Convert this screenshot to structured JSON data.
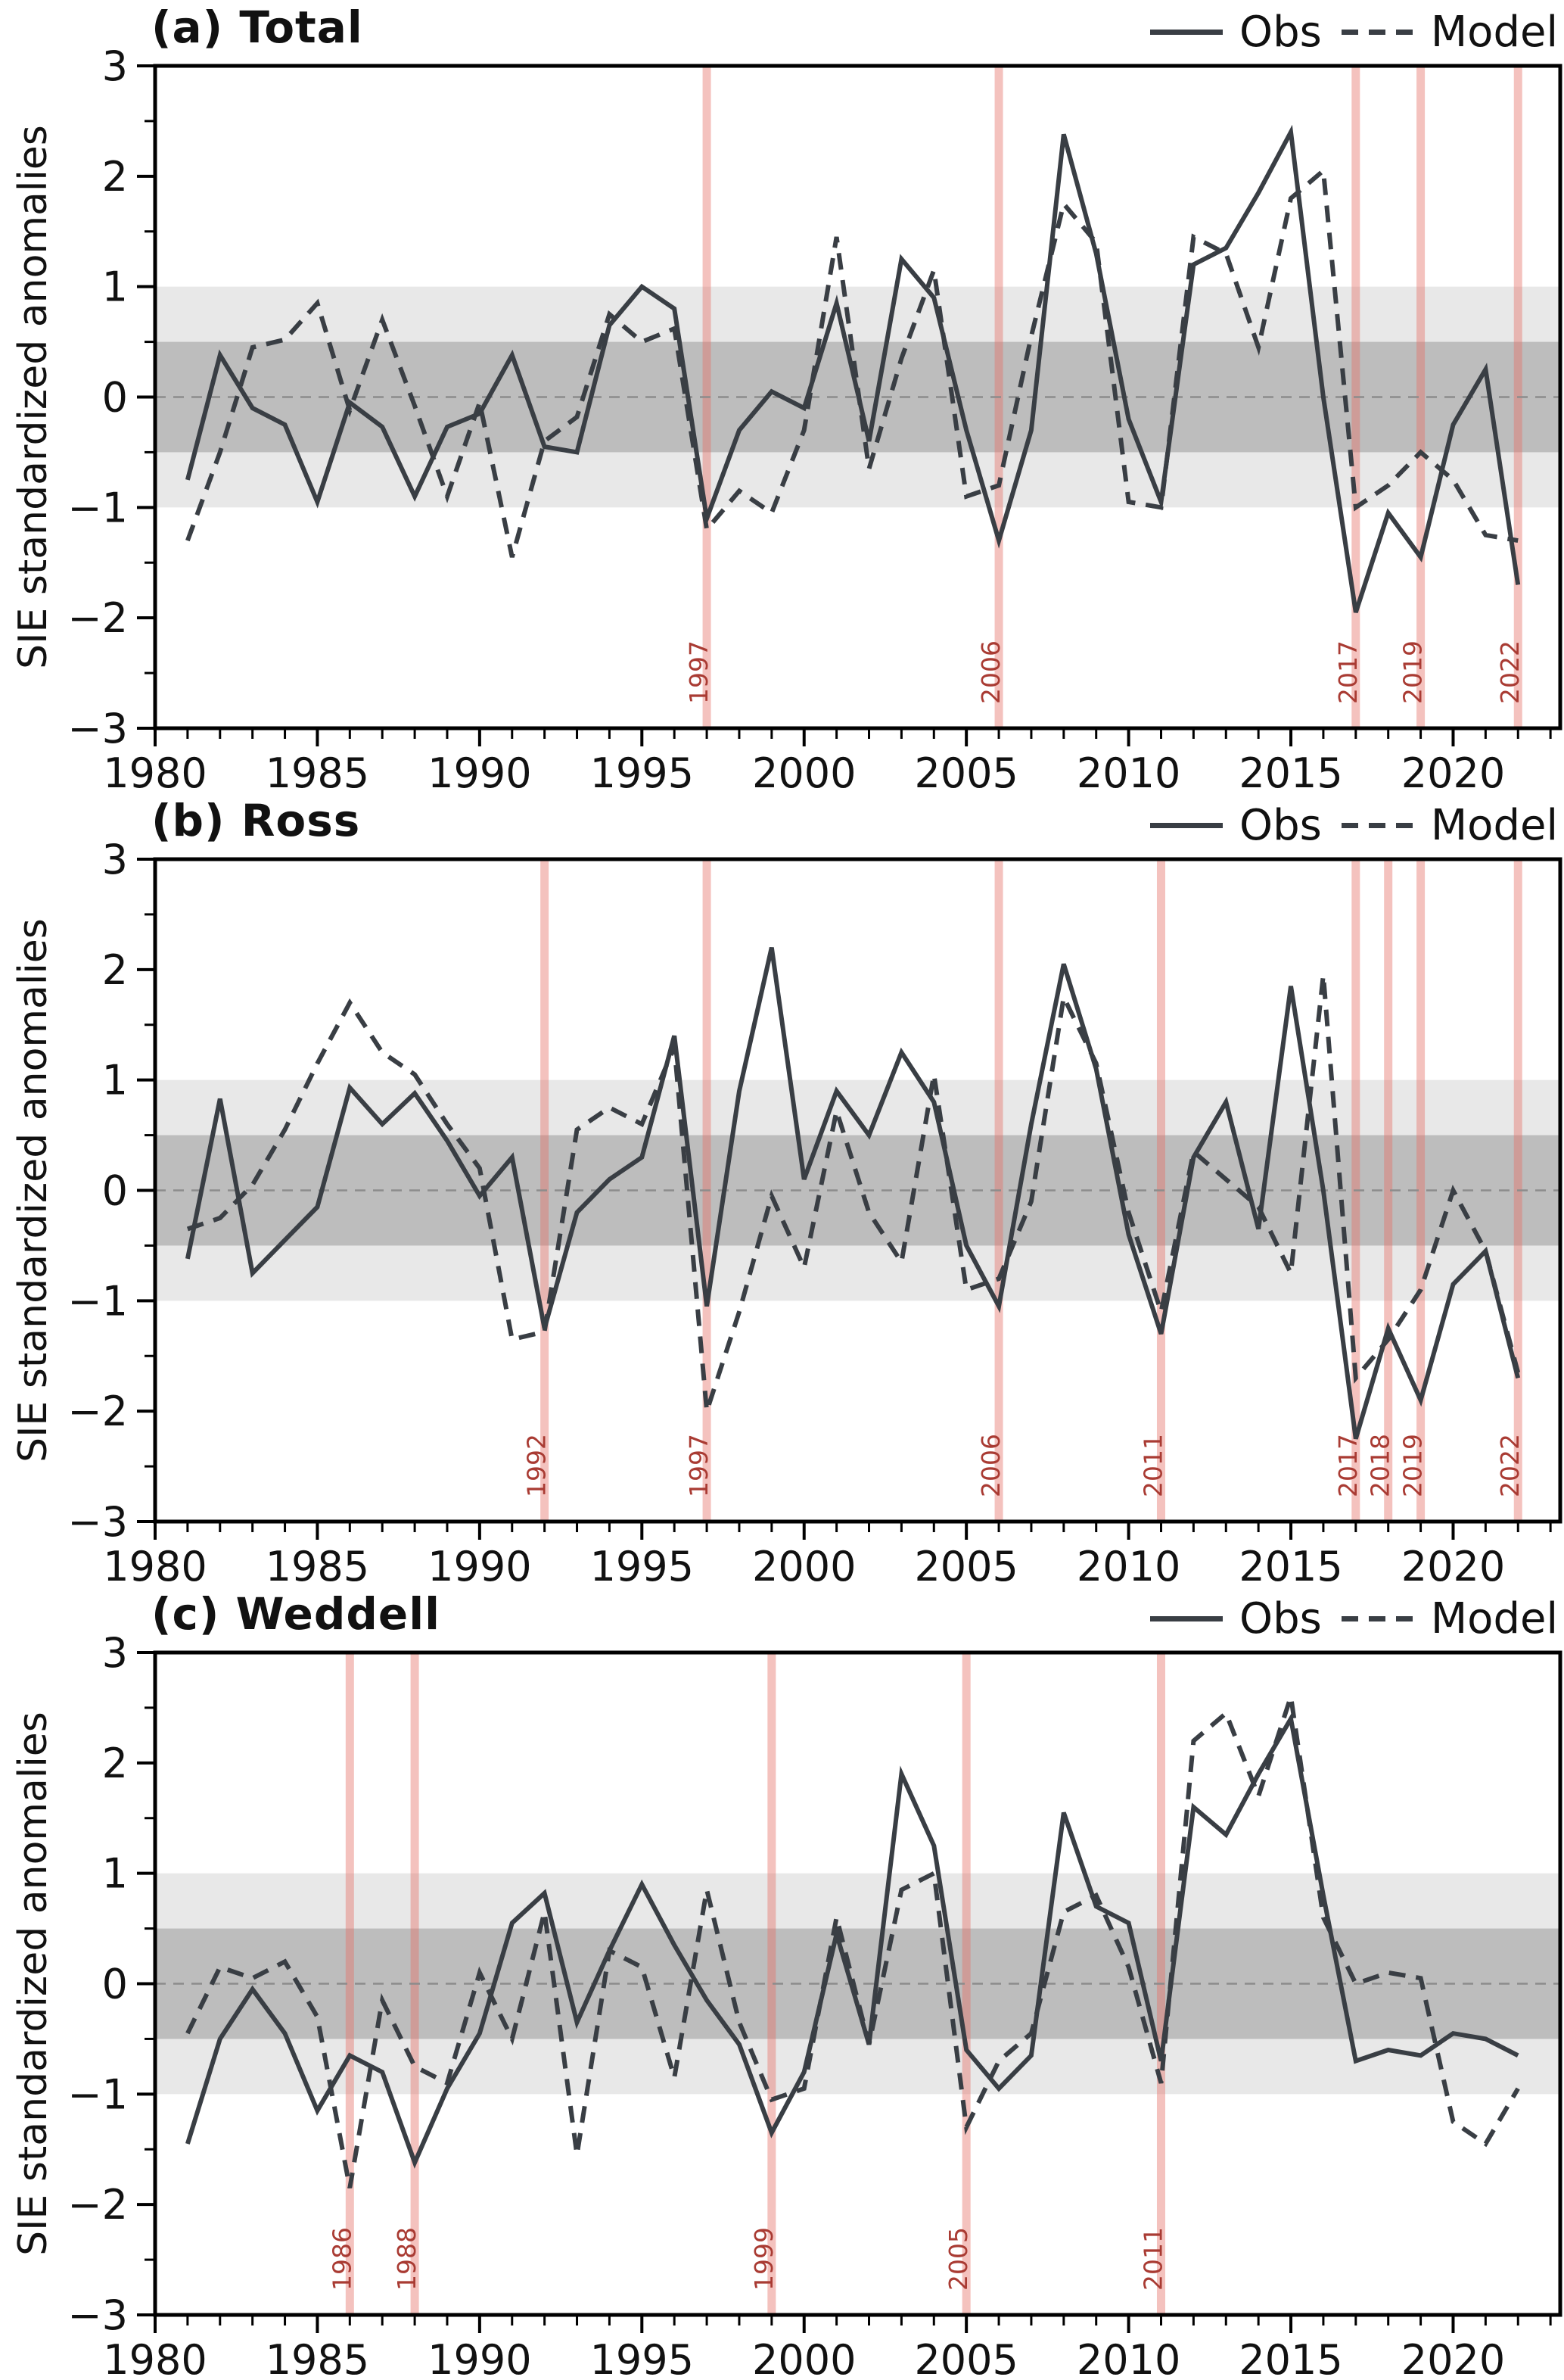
{
  "figure": {
    "ylabel": "SIE standardized anomalies",
    "legend": {
      "obs_label": "Obs",
      "model_label": "Model"
    },
    "colors": {
      "line": "#393e44",
      "event_fill": "rgba(228,110,100,0.42)",
      "event_label": "#a93b33",
      "band_inner": "#bdbdbd",
      "band_outer": "#e8e8e8",
      "zero_line": "#8c8c8c",
      "axis": "#000000"
    },
    "yticks": [
      -3,
      -2,
      -1,
      0,
      1,
      2,
      3
    ],
    "xticks": [
      1980,
      1985,
      1990,
      1995,
      2000,
      2005,
      2010,
      2015,
      2020
    ],
    "ylim": [
      -3,
      3
    ],
    "xlim": [
      1980,
      2023.3
    ],
    "bands": {
      "inner": 0.5,
      "outer": 1.0
    }
  },
  "chart_data": [
    {
      "type": "line",
      "title": "(a) Total",
      "ylabel": "SIE standardized anomalies",
      "ylim": [
        -3,
        3
      ],
      "legend_position": "top-right",
      "grid": false,
      "x": [
        1981,
        1982,
        1983,
        1984,
        1985,
        1986,
        1987,
        1988,
        1989,
        1990,
        1991,
        1992,
        1993,
        1994,
        1995,
        1996,
        1997,
        1998,
        1999,
        2000,
        2001,
        2002,
        2003,
        2004,
        2005,
        2006,
        2007,
        2008,
        2009,
        2010,
        2011,
        2012,
        2013,
        2014,
        2015,
        2016,
        2017,
        2018,
        2019,
        2020,
        2021,
        2022
      ],
      "series": [
        {
          "name": "Obs",
          "style": "solid",
          "values": [
            -0.75,
            0.38,
            -0.1,
            -0.25,
            -0.95,
            -0.05,
            -0.27,
            -0.9,
            -0.27,
            -0.15,
            0.38,
            -0.45,
            -0.5,
            0.65,
            1.0,
            0.8,
            -1.1,
            -0.3,
            0.05,
            -0.1,
            0.85,
            -0.4,
            1.25,
            0.9,
            -0.3,
            -1.3,
            -0.3,
            2.38,
            1.3,
            -0.2,
            -0.95,
            1.2,
            1.35,
            1.85,
            2.4,
            0.0,
            -1.95,
            -1.05,
            -1.45,
            -0.25,
            0.25,
            -1.7
          ]
        },
        {
          "name": "Model",
          "style": "dashed",
          "values": [
            -1.3,
            -0.5,
            0.45,
            0.52,
            0.85,
            -0.12,
            0.7,
            -0.08,
            -0.9,
            -0.05,
            -1.45,
            -0.4,
            -0.18,
            0.75,
            0.5,
            0.62,
            -1.2,
            -0.85,
            -1.05,
            -0.3,
            1.45,
            -0.65,
            0.35,
            1.15,
            -0.9,
            -0.8,
            0.55,
            1.75,
            1.4,
            -0.95,
            -1.0,
            1.45,
            1.3,
            0.45,
            1.8,
            2.05,
            -1.0,
            -0.8,
            -0.5,
            -0.75,
            -1.25,
            -1.3
          ]
        }
      ],
      "event_years": [
        1997,
        2006,
        2017,
        2019,
        2022
      ]
    },
    {
      "type": "line",
      "title": "(b) Ross",
      "ylabel": "SIE standardized anomalies",
      "ylim": [
        -3,
        3
      ],
      "legend_position": "top-right",
      "grid": false,
      "x": [
        1981,
        1982,
        1983,
        1984,
        1985,
        1986,
        1987,
        1988,
        1989,
        1990,
        1991,
        1992,
        1993,
        1994,
        1995,
        1996,
        1997,
        1998,
        1999,
        2000,
        2001,
        2002,
        2003,
        2004,
        2005,
        2006,
        2007,
        2008,
        2009,
        2010,
        2011,
        2012,
        2013,
        2014,
        2015,
        2016,
        2017,
        2018,
        2019,
        2020,
        2021,
        2022
      ],
      "series": [
        {
          "name": "Obs",
          "style": "solid",
          "values": [
            -0.62,
            0.83,
            -0.75,
            -0.45,
            -0.15,
            0.93,
            0.6,
            0.88,
            0.45,
            -0.05,
            0.3,
            -1.25,
            -0.2,
            0.1,
            0.3,
            1.4,
            -1.05,
            0.9,
            2.2,
            0.1,
            0.9,
            0.5,
            1.25,
            0.8,
            -0.5,
            -1.05,
            0.6,
            2.05,
            1.1,
            -0.4,
            -1.3,
            0.3,
            0.8,
            -0.35,
            1.85,
            0.0,
            -2.25,
            -1.25,
            -1.9,
            -0.85,
            -0.55,
            -1.7
          ]
        },
        {
          "name": "Model",
          "style": "dashed",
          "values": [
            -0.35,
            -0.25,
            0.05,
            0.55,
            1.15,
            1.7,
            1.25,
            1.05,
            0.6,
            0.2,
            -1.35,
            -1.28,
            0.55,
            0.75,
            0.6,
            1.3,
            -2.0,
            -1.1,
            -0.05,
            -0.7,
            0.72,
            -0.2,
            -0.65,
            1.05,
            -0.9,
            -0.8,
            -0.1,
            1.75,
            1.15,
            -0.2,
            -1.1,
            0.35,
            0.1,
            -0.15,
            -0.75,
            1.95,
            -1.7,
            -1.35,
            -0.9,
            0.0,
            -0.55,
            -1.65
          ]
        }
      ],
      "event_years": [
        1992,
        1997,
        2006,
        2011,
        2017,
        2018,
        2019,
        2022
      ]
    },
    {
      "type": "line",
      "title": "(c) Weddell",
      "ylabel": "SIE standardized anomalies",
      "ylim": [
        -3,
        3
      ],
      "legend_position": "top-right",
      "grid": false,
      "x": [
        1981,
        1982,
        1983,
        1984,
        1985,
        1986,
        1987,
        1988,
        1989,
        1990,
        1991,
        1992,
        1993,
        1994,
        1995,
        1996,
        1997,
        1998,
        1999,
        2000,
        2001,
        2002,
        2003,
        2004,
        2005,
        2006,
        2007,
        2008,
        2009,
        2010,
        2011,
        2012,
        2013,
        2014,
        2015,
        2016,
        2017,
        2018,
        2019,
        2020,
        2021,
        2022
      ],
      "series": [
        {
          "name": "Obs",
          "style": "solid",
          "values": [
            -1.45,
            -0.5,
            -0.05,
            -0.45,
            -1.15,
            -0.65,
            -0.8,
            -1.62,
            -0.95,
            -0.45,
            0.55,
            0.82,
            -0.35,
            0.3,
            0.9,
            0.35,
            -0.15,
            -0.55,
            -1.35,
            -0.8,
            0.45,
            -0.55,
            1.9,
            1.25,
            -0.6,
            -0.95,
            -0.65,
            1.55,
            0.7,
            0.55,
            -0.7,
            1.6,
            1.35,
            1.9,
            2.4,
            0.8,
            -0.7,
            -0.6,
            -0.65,
            -0.45,
            -0.5,
            -0.65
          ]
        },
        {
          "name": "Model",
          "style": "dashed",
          "values": [
            -0.45,
            0.15,
            0.05,
            0.2,
            -0.3,
            -1.85,
            -0.15,
            -0.75,
            -0.9,
            0.1,
            -0.5,
            0.65,
            -1.55,
            0.3,
            0.15,
            -0.85,
            0.85,
            -0.35,
            -1.05,
            -0.95,
            0.6,
            -0.55,
            0.85,
            1.0,
            -1.3,
            -0.7,
            -0.45,
            0.65,
            0.8,
            0.15,
            -0.9,
            2.2,
            2.45,
            1.7,
            2.6,
            0.6,
            0.0,
            0.1,
            0.05,
            -1.25,
            -1.45,
            -0.95
          ]
        }
      ],
      "event_years": [
        1986,
        1988,
        1999,
        2005,
        2011
      ]
    }
  ]
}
